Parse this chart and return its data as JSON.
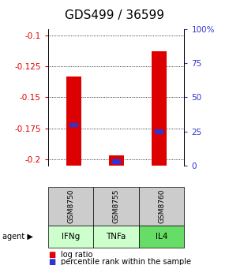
{
  "title": "GDS499 / 36599",
  "samples": [
    "GSM8750",
    "GSM8755",
    "GSM8760"
  ],
  "agents": [
    "IFNg",
    "TNFa",
    "IL4"
  ],
  "log_ratios": [
    -0.133,
    -0.197,
    -0.113
  ],
  "percentile_values": [
    0.3,
    0.03,
    0.25
  ],
  "ylim": [
    -0.205,
    -0.095
  ],
  "yticks_left": [
    -0.1,
    -0.125,
    -0.15,
    -0.175,
    -0.2
  ],
  "yticks_right_labels": [
    "100%",
    "75",
    "50",
    "25",
    "0"
  ],
  "bar_color": "#dd0000",
  "blue_color": "#3333cc",
  "agent_colors": [
    "#ccffcc",
    "#ccffcc",
    "#66dd66"
  ],
  "sample_bg_color": "#cccccc",
  "title_fontsize": 11,
  "tick_fontsize": 7.5,
  "legend_fontsize": 7,
  "bar_width": 0.35
}
